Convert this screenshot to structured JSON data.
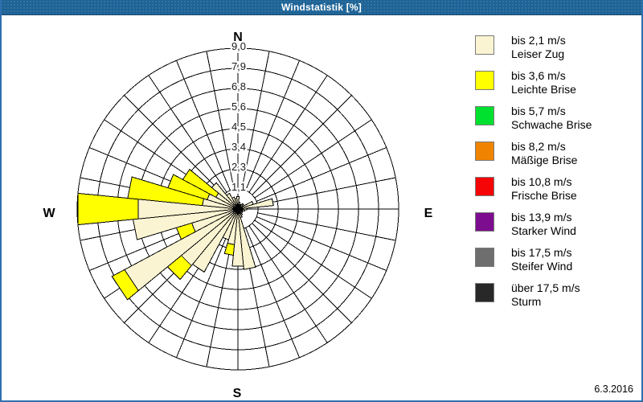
{
  "window": {
    "title": "Windstatistik [%]",
    "date": "6.3.2016"
  },
  "colors": {
    "title_bar": "#1d6396",
    "frame": "#2f6fae",
    "grid": "#000000",
    "background": "#ffffff"
  },
  "compass": {
    "n": "N",
    "e": "E",
    "s": "S",
    "w": "W"
  },
  "legend": {
    "items": [
      {
        "speed": "bis 2,1 m/s",
        "name": "Leiser Zug",
        "color": "#fbf4d2",
        "texture": null
      },
      {
        "speed": "bis 3,6 m/s",
        "name": "Leichte Brise",
        "color": "#ffff00",
        "texture": null
      },
      {
        "speed": "bis 5,7 m/s",
        "name": "Schwache Brise",
        "color": "#00e02e",
        "texture": null
      },
      {
        "speed": "bis 8,2 m/s",
        "name": "Mäßige Brise",
        "color": "#f08400",
        "texture": null
      },
      {
        "speed": "bis 10,8 m/s",
        "name": "Frische Brise",
        "color": "#f50505",
        "texture": null
      },
      {
        "speed": "bis 13,9 m/s",
        "name": "Starker Wind",
        "color": "#7d0d8f",
        "texture": "dark"
      },
      {
        "speed": "bis 17,5 m/s",
        "name": "Steifer Wind",
        "color": "#6e6e6e",
        "texture": "dark"
      },
      {
        "speed": "über 17,5 m/s",
        "name": "Sturm",
        "color": "#282828",
        "texture": "light"
      }
    ]
  },
  "chart_data": {
    "type": "bar",
    "subtype": "wind-rose-polar-stacked",
    "title": "Windstatistik [%]",
    "units": "%",
    "max_value": 9.0,
    "ring_values": [
      1.125,
      2.25,
      3.375,
      4.5,
      5.625,
      6.75,
      7.875,
      9.0
    ],
    "ring_labels": [
      "1,1",
      "2,3",
      "3,4",
      "4,5",
      "5,6",
      "6,8",
      "7,9",
      "9,0"
    ],
    "sectors": 32,
    "sector_width_deg": 11.25,
    "series": [
      {
        "name": "bis 2,1 m/s Leiser Zug",
        "color": "#fbf4d2"
      },
      {
        "name": "bis 3,6 m/s Leichte Brise",
        "color": "#ffff00"
      }
    ],
    "bars": [
      {
        "dir": 0.0,
        "values": [
          0.7,
          0.7
        ]
      },
      {
        "dir": 11.25,
        "values": [
          0.4,
          0.4
        ]
      },
      {
        "dir": 22.5,
        "values": [
          0.3,
          0.3
        ]
      },
      {
        "dir": 33.75,
        "values": [
          0.3,
          0.3
        ]
      },
      {
        "dir": 45.0,
        "values": [
          0.4,
          0.4
        ]
      },
      {
        "dir": 56.25,
        "values": [
          0.4,
          0.4
        ]
      },
      {
        "dir": 67.5,
        "values": [
          0.9,
          0.9
        ]
      },
      {
        "dir": 78.75,
        "values": [
          2.0,
          2.0
        ]
      },
      {
        "dir": 90.0,
        "values": [
          0.5,
          0.5
        ]
      },
      {
        "dir": 101.25,
        "values": [
          0.4,
          0.4
        ]
      },
      {
        "dir": 112.5,
        "values": [
          0.3,
          0.3
        ]
      },
      {
        "dir": 123.75,
        "values": [
          0.3,
          0.3
        ]
      },
      {
        "dir": 135.0,
        "values": [
          0.3,
          0.3
        ]
      },
      {
        "dir": 146.25,
        "values": [
          0.4,
          0.4
        ]
      },
      {
        "dir": 157.5,
        "values": [
          0.5,
          0.5
        ]
      },
      {
        "dir": 168.75,
        "values": [
          3.4,
          3.4
        ]
      },
      {
        "dir": 180.0,
        "values": [
          3.2,
          3.2
        ]
      },
      {
        "dir": 191.25,
        "values": [
          2.0,
          2.6
        ]
      },
      {
        "dir": 202.5,
        "values": [
          1.8,
          1.8
        ]
      },
      {
        "dir": 213.75,
        "values": [
          4.0,
          4.0
        ]
      },
      {
        "dir": 225.0,
        "values": [
          4.1,
          5.1
        ]
      },
      {
        "dir": 236.25,
        "values": [
          7.2,
          8.0
        ]
      },
      {
        "dir": 247.5,
        "values": [
          2.7,
          3.6
        ]
      },
      {
        "dir": 258.75,
        "values": [
          5.9,
          5.9
        ]
      },
      {
        "dir": 270.0,
        "values": [
          5.6,
          9.0
        ]
      },
      {
        "dir": 281.25,
        "values": [
          2.0,
          6.2
        ]
      },
      {
        "dir": 292.5,
        "values": [
          1.8,
          4.1
        ]
      },
      {
        "dir": 303.75,
        "values": [
          1.4,
          3.5
        ]
      },
      {
        "dir": 315.0,
        "values": [
          1.9,
          1.9
        ]
      },
      {
        "dir": 326.25,
        "values": [
          1.0,
          1.0
        ]
      },
      {
        "dir": 337.5,
        "values": [
          0.7,
          0.7
        ]
      },
      {
        "dir": 348.75,
        "values": [
          0.6,
          0.6
        ]
      }
    ]
  }
}
